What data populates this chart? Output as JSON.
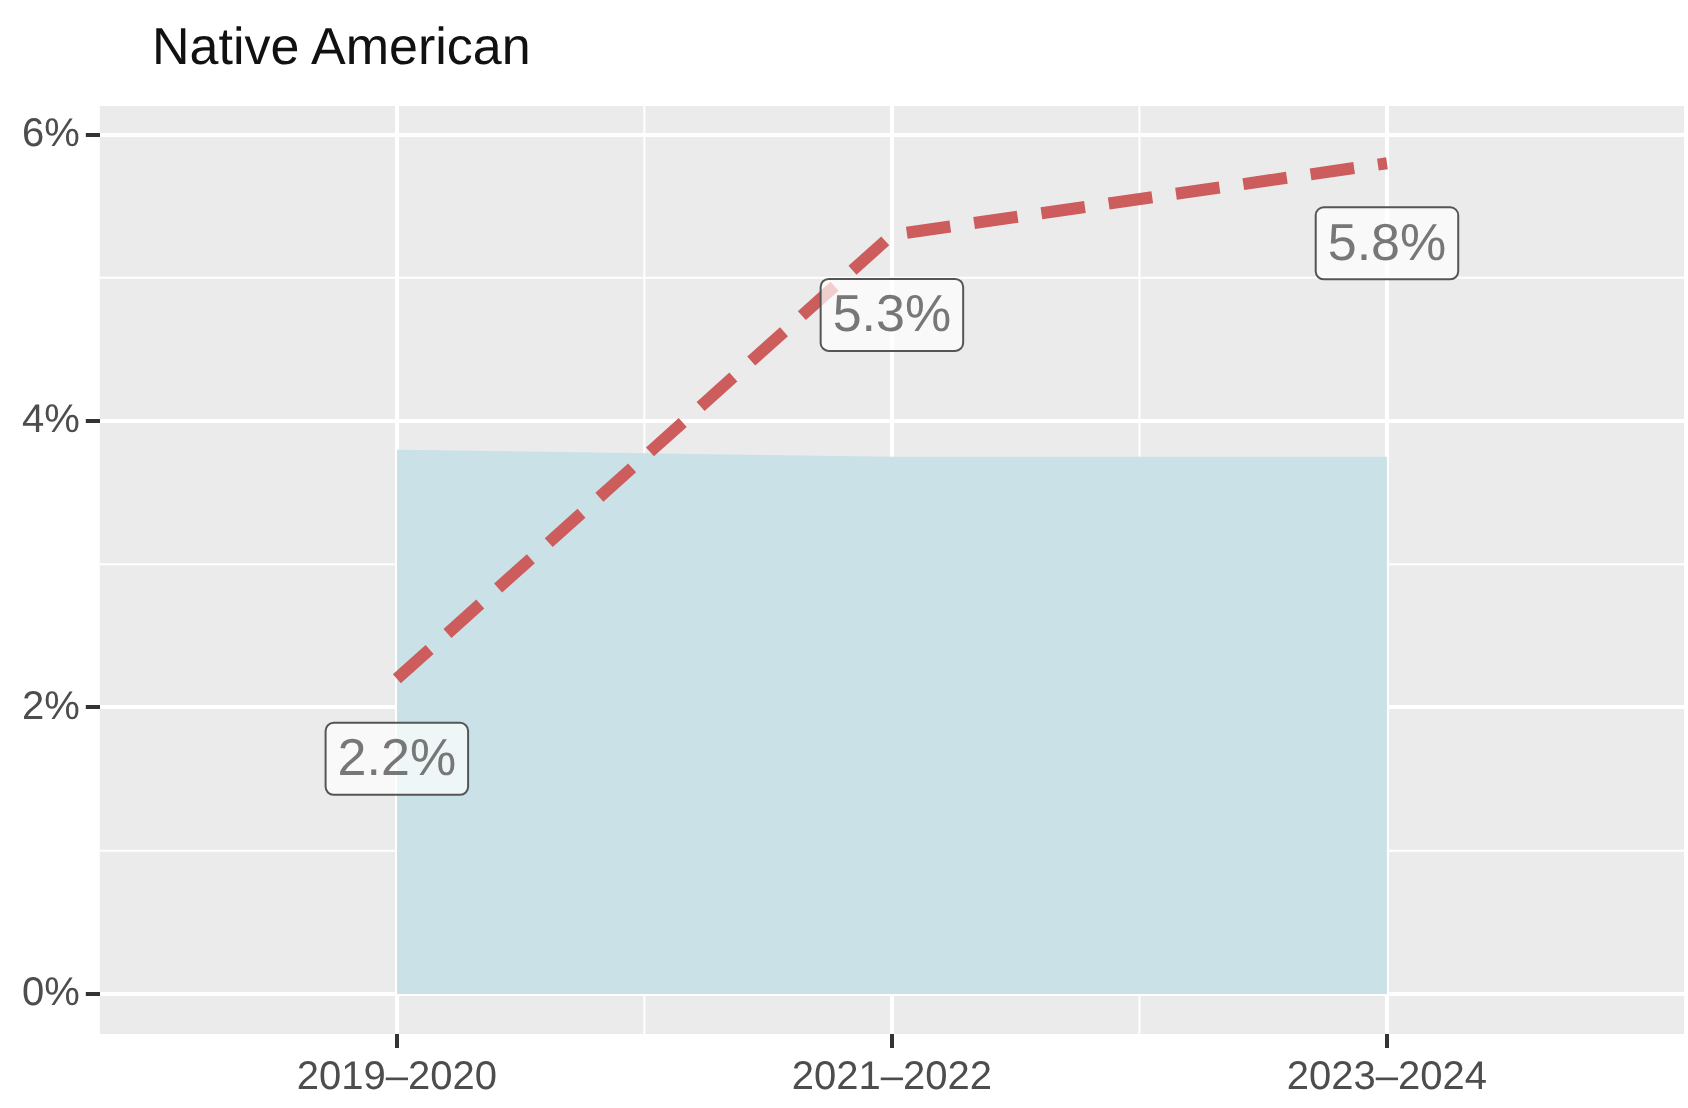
{
  "chart_data": {
    "type": "line",
    "title": "Native American",
    "categories": [
      "2019–2020",
      "2021–2022",
      "2023–2024"
    ],
    "series": [
      {
        "type": "area",
        "color": "#c9e1e7",
        "values": [
          3.8,
          3.75,
          3.75
        ]
      },
      {
        "type": "line",
        "color": "#cd5c5c",
        "values": [
          2.2,
          5.3,
          5.8
        ],
        "line_style": "dashed",
        "value_labels": [
          "2.2%",
          "5.3%",
          "5.8%"
        ]
      }
    ],
    "ylim": [
      -0.28,
      6.2
    ],
    "yticks": [
      {
        "value": 0,
        "label": "0%"
      },
      {
        "value": 2,
        "label": "2%"
      },
      {
        "value": 4,
        "label": "4%"
      },
      {
        "value": 6,
        "label": "6%"
      }
    ],
    "grid": true,
    "legend": false
  }
}
